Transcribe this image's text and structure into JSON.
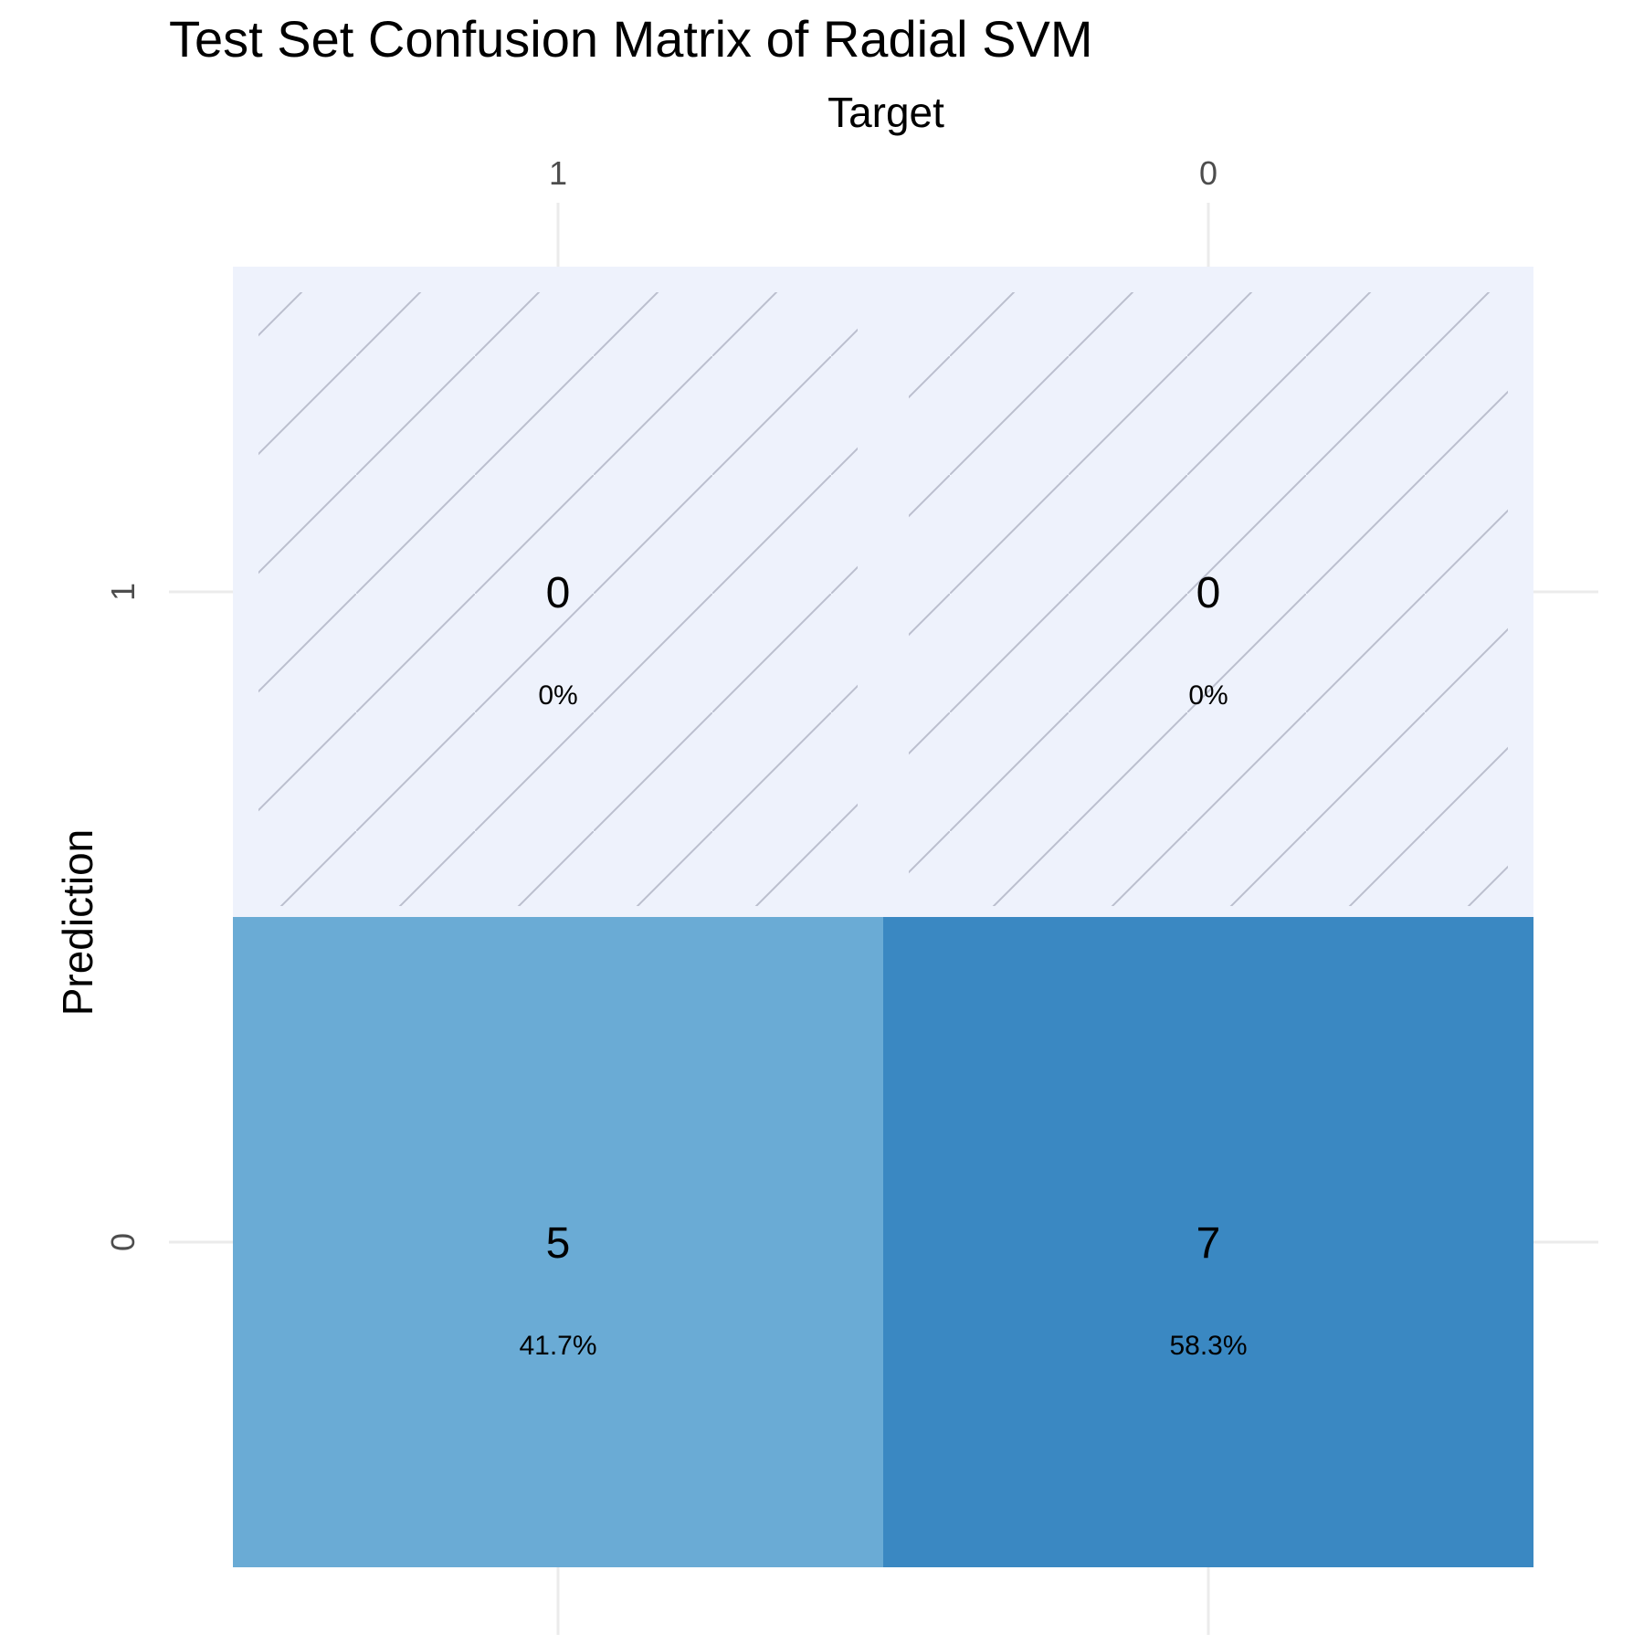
{
  "chart_data": {
    "type": "heatmap",
    "title": "Test Set Confusion Matrix of Radial SVM",
    "xlabel": "Target",
    "ylabel": "Prediction",
    "x_categories": [
      "1",
      "0"
    ],
    "y_categories": [
      "1",
      "0"
    ],
    "cells": [
      {
        "target": "1",
        "prediction": "1",
        "count": "0",
        "percent": "0%",
        "value": 0,
        "color": "#eef2fc",
        "zero": true
      },
      {
        "target": "0",
        "prediction": "1",
        "count": "0",
        "percent": "0%",
        "value": 0,
        "color": "#eef2fc",
        "zero": true
      },
      {
        "target": "1",
        "prediction": "0",
        "count": "5",
        "percent": "41.7%",
        "value": 5,
        "color": "#6aabd5",
        "zero": false
      },
      {
        "target": "0",
        "prediction": "0",
        "count": "7",
        "percent": "58.3%",
        "value": 7,
        "color": "#3a88c2",
        "zero": false
      }
    ],
    "grid": true,
    "legend": "none"
  }
}
